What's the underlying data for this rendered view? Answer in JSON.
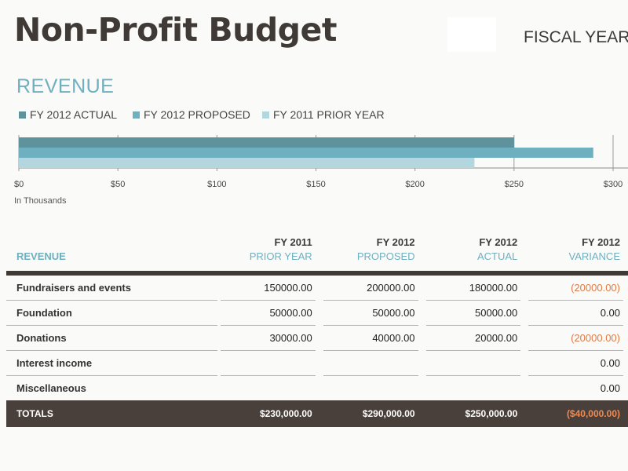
{
  "header": {
    "title": "Non-Profit Budget",
    "fiscal_year_label": "FISCAL YEAR"
  },
  "section": {
    "title": "REVENUE"
  },
  "chart_data": {
    "type": "bar",
    "orientation": "horizontal",
    "legend": [
      {
        "name": "FY 2012 ACTUAL",
        "color": "#5e929c"
      },
      {
        "name": "FY 2012 PROPOSED",
        "color": "#6fb0c0"
      },
      {
        "name": "FY 2011 PRIOR YEAR",
        "color": "#b4d6df"
      }
    ],
    "series": [
      {
        "name": "FY 2012 ACTUAL",
        "values": [
          250
        ]
      },
      {
        "name": "FY 2012 PROPOSED",
        "values": [
          290
        ]
      },
      {
        "name": "FY 2011 PRIOR YEAR",
        "values": [
          230
        ]
      }
    ],
    "xlim": [
      0,
      300
    ],
    "x_ticks": [
      "$0",
      "$50",
      "$100",
      "$150",
      "$200",
      "$250",
      "$300"
    ],
    "x_tick_values": [
      0,
      50,
      100,
      150,
      200,
      250,
      300
    ],
    "unit_note": "In Thousands"
  },
  "table": {
    "header_label": "REVENUE",
    "columns": [
      {
        "fy": "FY 2011",
        "sub": "PRIOR YEAR"
      },
      {
        "fy": "FY 2012",
        "sub": "PROPOSED"
      },
      {
        "fy": "FY 2012",
        "sub": "ACTUAL"
      },
      {
        "fy": "FY 2012",
        "sub": "VARIANCE"
      }
    ],
    "rows": [
      {
        "label": "Fundraisers and events",
        "prior": "150000.00",
        "proposed": "200000.00",
        "actual": "180000.00",
        "variance": "(20000.00)",
        "negative": true
      },
      {
        "label": "Foundation",
        "prior": "50000.00",
        "proposed": "50000.00",
        "actual": "50000.00",
        "variance": "0.00",
        "negative": false
      },
      {
        "label": "Donations",
        "prior": "30000.00",
        "proposed": "40000.00",
        "actual": "20000.00",
        "variance": "(20000.00)",
        "negative": true
      },
      {
        "label": "Interest income",
        "prior": "",
        "proposed": "",
        "actual": "",
        "variance": "0.00",
        "negative": false
      },
      {
        "label": "Miscellaneous",
        "prior": "",
        "proposed": "",
        "actual": "",
        "variance": "0.00",
        "negative": false
      }
    ],
    "totals": {
      "label": "TOTALS",
      "prior": "$230,000.00",
      "proposed": "$290,000.00",
      "actual": "$250,000.00",
      "variance": "($40,000.00)"
    }
  },
  "colors": {
    "accent": "#6fb0c0",
    "negative": "#e07b45",
    "totals_bg": "#4a403b"
  }
}
